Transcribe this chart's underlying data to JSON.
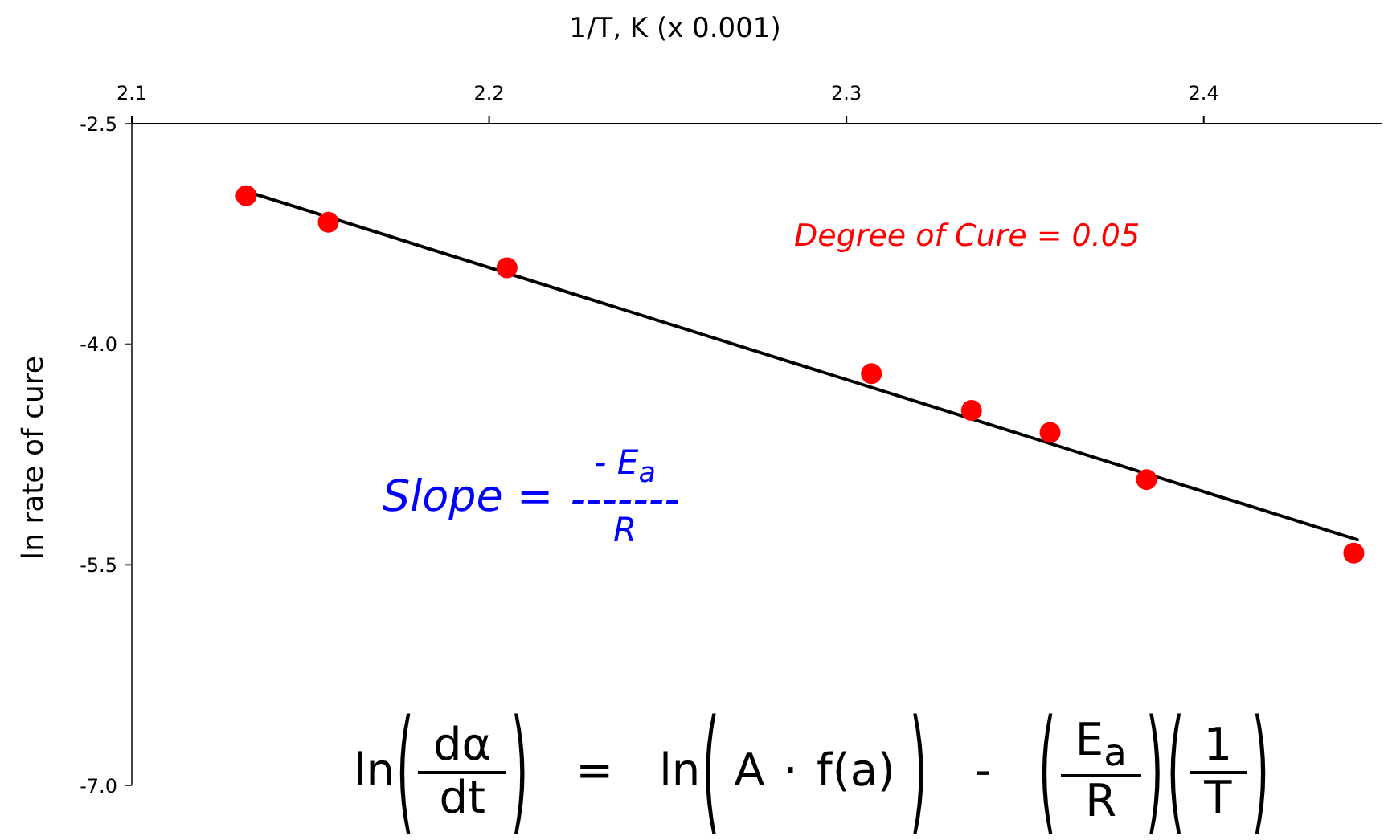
{
  "chart_data": {
    "type": "scatter",
    "xlabel": "1/T, K (x 0.001)",
    "ylabel": "ln rate of cure",
    "annotations": [
      "Degree of Cure = 0.05",
      "Slope = - E$_{a}$\n-------\nR",
      "ln(dα\ndt) = ln(A · f(a)) - (E$_{a}$\nR)(1\nT)"
    ],
    "xlim": [
      2.1,
      2.45
    ],
    "xticks": [
      2.1,
      2.2,
      2.3,
      2.4
    ],
    "ylim": [
      -7,
      -2.5
    ],
    "yticks": [
      -2.5,
      {
        "value": -4,
        "label": "-4.0"
      },
      -5.5,
      {
        "value": -7,
        "label": "-7.0"
      }
    ],
    "series": [
      {
        "color": "#ff0000",
        "marker": "circle",
        "x": [
          2.132,
          2.155,
          2.205,
          2.307,
          2.335,
          2.357,
          2.384,
          2.442
        ],
        "values": [
          -2.99,
          -3.17,
          -3.48,
          -4.2,
          -4.45,
          -4.6,
          -4.92,
          -5.42
        ]
      },
      {
        "type": "line",
        "color": "#000000",
        "marker": "none",
        "x": [
          2.132,
          2.443
        ],
        "values": [
          -2.96,
          -5.33
        ]
      }
    ]
  }
}
